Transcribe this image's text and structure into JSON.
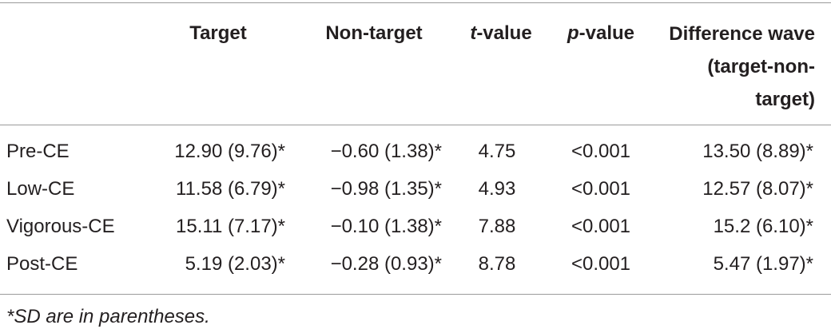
{
  "table": {
    "header": [
      {
        "text": "Target"
      },
      {
        "text": "Non-target"
      },
      {
        "italic": "t",
        "text": "-value"
      },
      {
        "italic": "p",
        "text": "-value"
      },
      {
        "text": "Difference wave (target-non-target)"
      }
    ],
    "rows": [
      [
        "Pre-CE",
        "12.90 (9.76)*",
        "−0.60 (1.38)*",
        "4.75",
        "<0.001",
        "13.50 (8.89)*"
      ],
      [
        "Low-CE",
        "11.58 (6.79)*",
        "−0.98 (1.35)*",
        "4.93",
        "<0.001",
        "12.57 (8.07)*"
      ],
      [
        "Vigorous-CE",
        "15.11 (7.17)*",
        "−0.10 (1.38)*",
        "7.88",
        "<0.001",
        "15.2 (6.10)*"
      ],
      [
        "Post-CE",
        "5.19 (2.03)*",
        "−0.28 (0.93)*",
        "8.78",
        "<0.001",
        "5.47 (1.97)*"
      ]
    ],
    "footnote": "*SD are in parentheses."
  }
}
